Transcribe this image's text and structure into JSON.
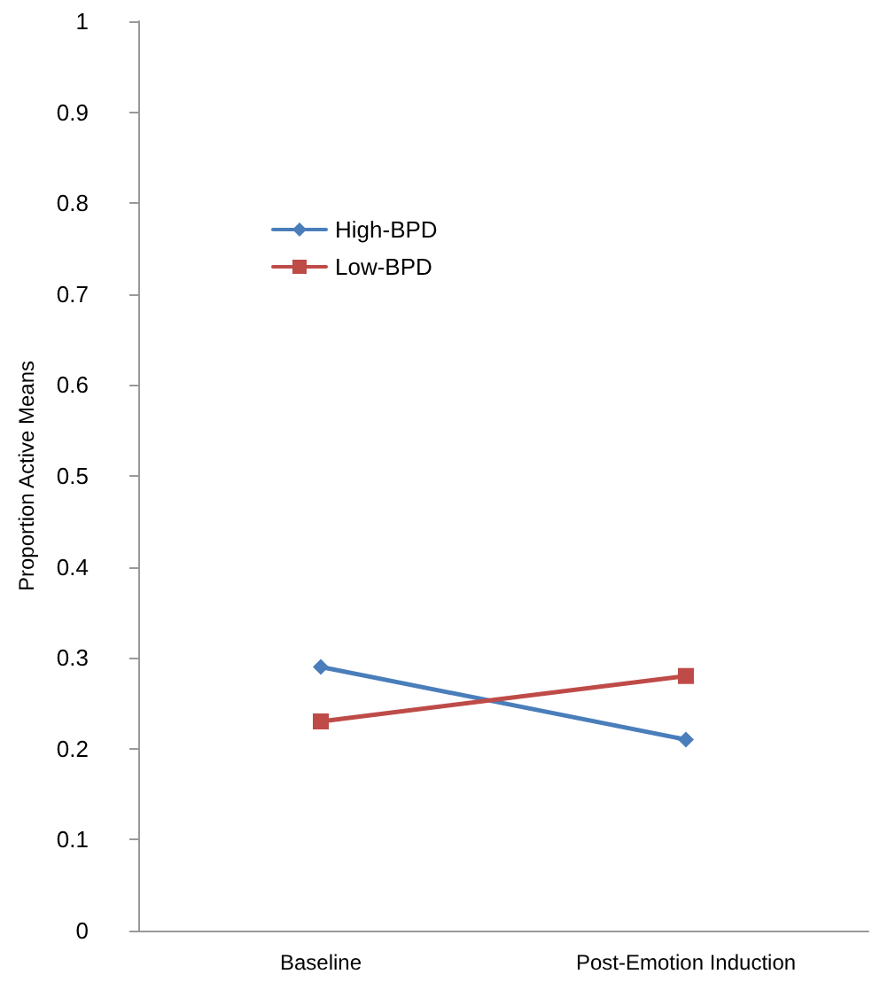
{
  "chart_data": {
    "type": "line",
    "ylabel": "Proportion Active Means",
    "categories": [
      "Baseline",
      "Post-Emotion Induction"
    ],
    "series": [
      {
        "name": "High-BPD",
        "color": "#4a7ebb",
        "values": [
          0.29,
          0.21
        ],
        "marker": "diamond"
      },
      {
        "name": "Low-BPD",
        "color": "#be4b48",
        "values": [
          0.23,
          0.28
        ],
        "marker": "square"
      }
    ],
    "ylim": [
      0,
      1
    ],
    "yticks": [
      0,
      0.1,
      0.2,
      0.3,
      0.4,
      0.5,
      0.6,
      0.7,
      0.8,
      0.9,
      1
    ],
    "grid": false,
    "legend": "top left",
    "line_style": "solid"
  }
}
